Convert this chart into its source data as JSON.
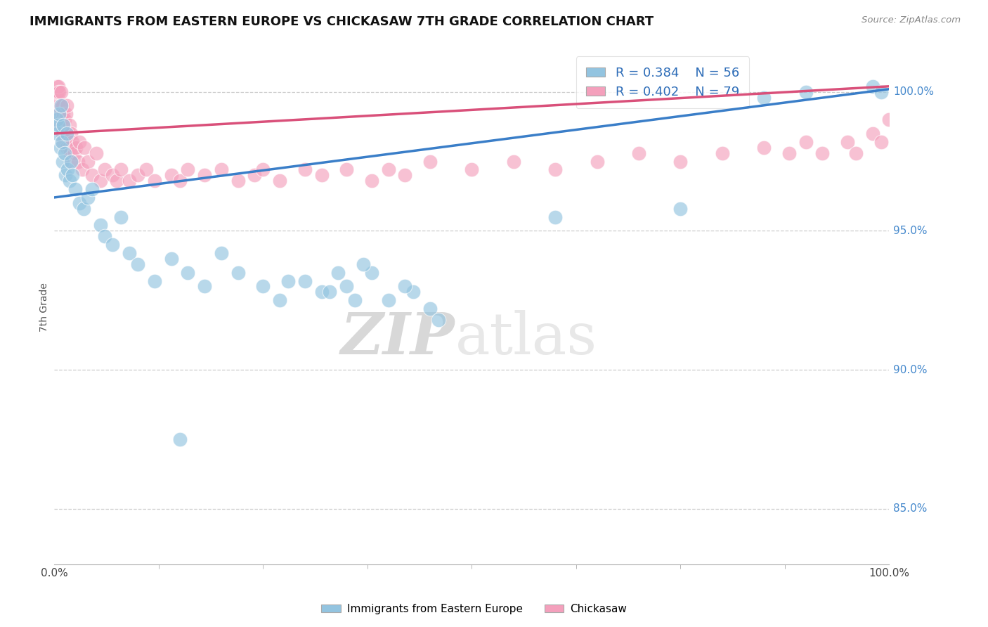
{
  "title": "IMMIGRANTS FROM EASTERN EUROPE VS CHICKASAW 7TH GRADE CORRELATION CHART",
  "source": "Source: ZipAtlas.com",
  "ylabel": "7th Grade",
  "xlim": [
    0.0,
    100.0
  ],
  "ylim": [
    83.0,
    101.5
  ],
  "legend_r_blue": "R = 0.384",
  "legend_n_blue": "N = 56",
  "legend_r_pink": "R = 0.402",
  "legend_n_pink": "N = 79",
  "blue_color": "#93c4e0",
  "pink_color": "#f4a0bc",
  "blue_line_color": "#3a7ec8",
  "pink_line_color": "#d9507a",
  "watermark_zip": "ZIP",
  "watermark_atlas": "atlas",
  "right_yticks": [
    85.0,
    90.0,
    95.0,
    100.0
  ],
  "right_ytick_labels": [
    "85.0%",
    "90.0%",
    "95.0%",
    "100.0%"
  ],
  "blue_points_x": [
    0.3,
    0.4,
    0.5,
    0.6,
    0.7,
    0.8,
    0.9,
    1.0,
    1.1,
    1.2,
    1.3,
    1.5,
    1.6,
    1.8,
    2.0,
    2.2,
    2.5,
    3.0,
    3.5,
    4.0,
    4.5,
    5.5,
    6.0,
    7.0,
    8.0,
    9.0,
    10.0,
    12.0,
    14.0,
    16.0,
    18.0,
    20.0,
    22.0,
    25.0,
    27.0,
    30.0,
    32.0,
    35.0,
    38.0,
    40.0,
    43.0,
    45.0,
    15.0,
    28.0,
    33.0,
    34.0,
    36.0,
    37.0,
    42.0,
    46.0,
    60.0,
    75.0,
    85.0,
    90.0,
    98.0,
    99.0
  ],
  "blue_points_y": [
    99.0,
    98.5,
    98.8,
    99.2,
    98.0,
    99.5,
    98.2,
    97.5,
    98.8,
    97.8,
    97.0,
    98.5,
    97.2,
    96.8,
    97.5,
    97.0,
    96.5,
    96.0,
    95.8,
    96.2,
    96.5,
    95.2,
    94.8,
    94.5,
    95.5,
    94.2,
    93.8,
    93.2,
    94.0,
    93.5,
    93.0,
    94.2,
    93.5,
    93.0,
    92.5,
    93.2,
    92.8,
    93.0,
    93.5,
    92.5,
    92.8,
    92.2,
    87.5,
    93.2,
    92.8,
    93.5,
    92.5,
    93.8,
    93.0,
    91.8,
    95.5,
    95.8,
    99.8,
    100.0,
    100.2,
    100.0
  ],
  "pink_points_x": [
    0.2,
    0.3,
    0.4,
    0.4,
    0.5,
    0.5,
    0.6,
    0.6,
    0.7,
    0.7,
    0.8,
    0.8,
    0.9,
    1.0,
    1.0,
    1.1,
    1.1,
    1.2,
    1.3,
    1.4,
    1.5,
    1.5,
    1.6,
    1.7,
    1.8,
    1.9,
    2.0,
    2.1,
    2.2,
    2.4,
    2.6,
    2.8,
    3.0,
    3.3,
    3.6,
    4.0,
    4.5,
    5.0,
    5.5,
    6.0,
    7.0,
    7.5,
    8.0,
    9.0,
    10.0,
    11.0,
    12.0,
    14.0,
    15.0,
    16.0,
    18.0,
    20.0,
    22.0,
    24.0,
    25.0,
    27.0,
    30.0,
    32.0,
    35.0,
    38.0,
    40.0,
    42.0,
    45.0,
    50.0,
    55.0,
    60.0,
    65.0,
    70.0,
    75.0,
    80.0,
    85.0,
    88.0,
    90.0,
    92.0,
    95.0,
    96.0,
    98.0,
    99.0,
    100.0
  ],
  "pink_points_y": [
    100.0,
    100.2,
    99.8,
    100.0,
    99.5,
    100.2,
    99.2,
    100.0,
    99.5,
    98.8,
    99.2,
    100.0,
    99.0,
    99.5,
    98.5,
    99.2,
    98.2,
    99.0,
    98.5,
    99.2,
    98.0,
    99.5,
    98.5,
    98.0,
    98.8,
    97.8,
    98.5,
    97.5,
    98.2,
    97.8,
    98.0,
    97.5,
    98.2,
    97.2,
    98.0,
    97.5,
    97.0,
    97.8,
    96.8,
    97.2,
    97.0,
    96.8,
    97.2,
    96.8,
    97.0,
    97.2,
    96.8,
    97.0,
    96.8,
    97.2,
    97.0,
    97.2,
    96.8,
    97.0,
    97.2,
    96.8,
    97.2,
    97.0,
    97.2,
    96.8,
    97.2,
    97.0,
    97.5,
    97.2,
    97.5,
    97.2,
    97.5,
    97.8,
    97.5,
    97.8,
    98.0,
    97.8,
    98.2,
    97.8,
    98.2,
    97.8,
    98.5,
    98.2,
    99.0
  ]
}
